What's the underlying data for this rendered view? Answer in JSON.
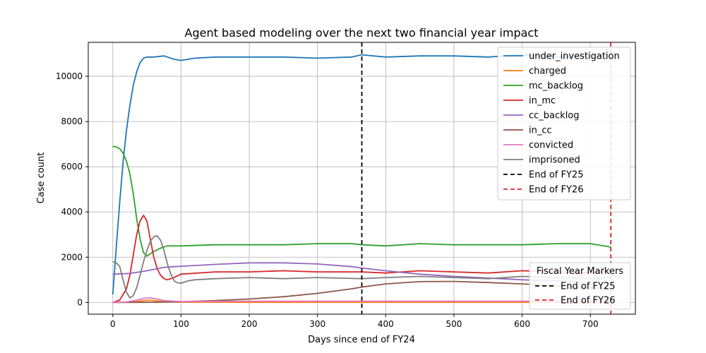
{
  "chart_data": {
    "type": "line",
    "title": "Agent based modeling over the next two financial year impact",
    "xlabel": "Days since end of FY24",
    "ylabel": "Case count",
    "xlim": [
      -36,
      766
    ],
    "ylim": [
      -520,
      11500
    ],
    "xticks": [
      0,
      100,
      200,
      300,
      400,
      500,
      600,
      700
    ],
    "yticks": [
      0,
      2000,
      4000,
      6000,
      8000,
      10000
    ],
    "grid": true,
    "legend_position": "top-right",
    "series": [
      {
        "name": "under_investigation",
        "color": "#1f77b4",
        "x": [
          0,
          5,
          10,
          15,
          20,
          25,
          30,
          35,
          40,
          45,
          50,
          60,
          75,
          90,
          100,
          120,
          150,
          200,
          250,
          300,
          350,
          365,
          400,
          450,
          500,
          550,
          600,
          650,
          700,
          730
        ],
        "y": [
          350,
          2400,
          4400,
          6200,
          7600,
          8700,
          9600,
          10200,
          10600,
          10800,
          10850,
          10850,
          10900,
          10750,
          10700,
          10800,
          10850,
          10850,
          10850,
          10800,
          10850,
          10950,
          10850,
          10900,
          10900,
          10850,
          10950,
          10850,
          10900,
          10900
        ]
      },
      {
        "name": "charged",
        "color": "#ff7f0e",
        "x": [
          0,
          20,
          35,
          45,
          55,
          65,
          75,
          100,
          200,
          400,
          600,
          730
        ],
        "y": [
          0,
          10,
          40,
          80,
          100,
          70,
          30,
          10,
          5,
          5,
          5,
          5
        ]
      },
      {
        "name": "mc_backlog",
        "color": "#2ca02c",
        "x": [
          0,
          5,
          10,
          15,
          20,
          25,
          30,
          35,
          40,
          45,
          50,
          60,
          70,
          80,
          100,
          150,
          200,
          250,
          300,
          350,
          365,
          400,
          450,
          500,
          550,
          600,
          650,
          700,
          730
        ],
        "y": [
          6900,
          6880,
          6800,
          6600,
          6250,
          5700,
          4800,
          3700,
          2800,
          2200,
          2050,
          2250,
          2400,
          2500,
          2500,
          2550,
          2550,
          2550,
          2600,
          2600,
          2550,
          2500,
          2600,
          2550,
          2550,
          2550,
          2600,
          2600,
          2450
        ]
      },
      {
        "name": "in_mc",
        "color": "#d62728",
        "x": [
          0,
          10,
          20,
          25,
          30,
          35,
          40,
          45,
          50,
          55,
          60,
          65,
          70,
          75,
          80,
          90,
          100,
          150,
          200,
          250,
          300,
          365,
          400,
          450,
          500,
          550,
          600,
          650,
          700,
          730
        ],
        "y": [
          0,
          100,
          600,
          1200,
          2100,
          3000,
          3600,
          3850,
          3600,
          2800,
          2000,
          1500,
          1200,
          1050,
          1000,
          1100,
          1250,
          1350,
          1350,
          1400,
          1350,
          1350,
          1300,
          1400,
          1350,
          1300,
          1400,
          1350,
          1300,
          1400
        ]
      },
      {
        "name": "cc_backlog",
        "color": "#9467bd",
        "x": [
          0,
          25,
          50,
          75,
          100,
          150,
          200,
          250,
          300,
          350,
          365,
          400,
          450,
          500,
          550,
          600,
          650,
          700,
          730
        ],
        "y": [
          1250,
          1280,
          1400,
          1550,
          1600,
          1680,
          1750,
          1750,
          1700,
          1580,
          1520,
          1400,
          1250,
          1150,
          1080,
          1000,
          950,
          900,
          880
        ]
      },
      {
        "name": "in_cc",
        "color": "#8c564b",
        "x": [
          0,
          50,
          100,
          150,
          200,
          250,
          300,
          350,
          365,
          400,
          450,
          500,
          550,
          600,
          650,
          700,
          730
        ],
        "y": [
          0,
          5,
          30,
          80,
          150,
          250,
          400,
          600,
          680,
          820,
          920,
          930,
          880,
          820,
          740,
          650,
          600
        ]
      },
      {
        "name": "convicted",
        "color": "#e377c2",
        "x": [
          0,
          20,
          35,
          45,
          55,
          65,
          75,
          100,
          200,
          400,
          600,
          730
        ],
        "y": [
          0,
          20,
          100,
          180,
          200,
          150,
          80,
          40,
          50,
          50,
          50,
          50
        ]
      },
      {
        "name": "imprisoned",
        "color": "#7f7f7f",
        "x": [
          0,
          5,
          10,
          15,
          20,
          25,
          30,
          35,
          40,
          45,
          50,
          55,
          60,
          65,
          70,
          75,
          80,
          85,
          90,
          95,
          100,
          110,
          120,
          150,
          200,
          250,
          300,
          365,
          400,
          450,
          500,
          550,
          600,
          650,
          700,
          730
        ],
        "y": [
          1800,
          1750,
          1600,
          1000,
          450,
          200,
          300,
          650,
          1200,
          1800,
          2300,
          2700,
          2900,
          2950,
          2750,
          2300,
          1700,
          1250,
          950,
          870,
          850,
          950,
          1000,
          1050,
          1100,
          1050,
          1100,
          1050,
          1100,
          1150,
          1100,
          1050,
          1150,
          1100,
          1050,
          1100
        ]
      }
    ],
    "vlines": [
      {
        "x": 365,
        "color": "#000000",
        "label": "End of FY25"
      },
      {
        "x": 730,
        "color": "#d62728",
        "label": "End of FY26"
      }
    ],
    "legend2": {
      "title": "Fiscal Year Markers",
      "position": "bottom-right",
      "entries": [
        {
          "label": "End of FY25",
          "color": "#000000"
        },
        {
          "label": "End of FY26",
          "color": "#d62728"
        }
      ]
    }
  }
}
